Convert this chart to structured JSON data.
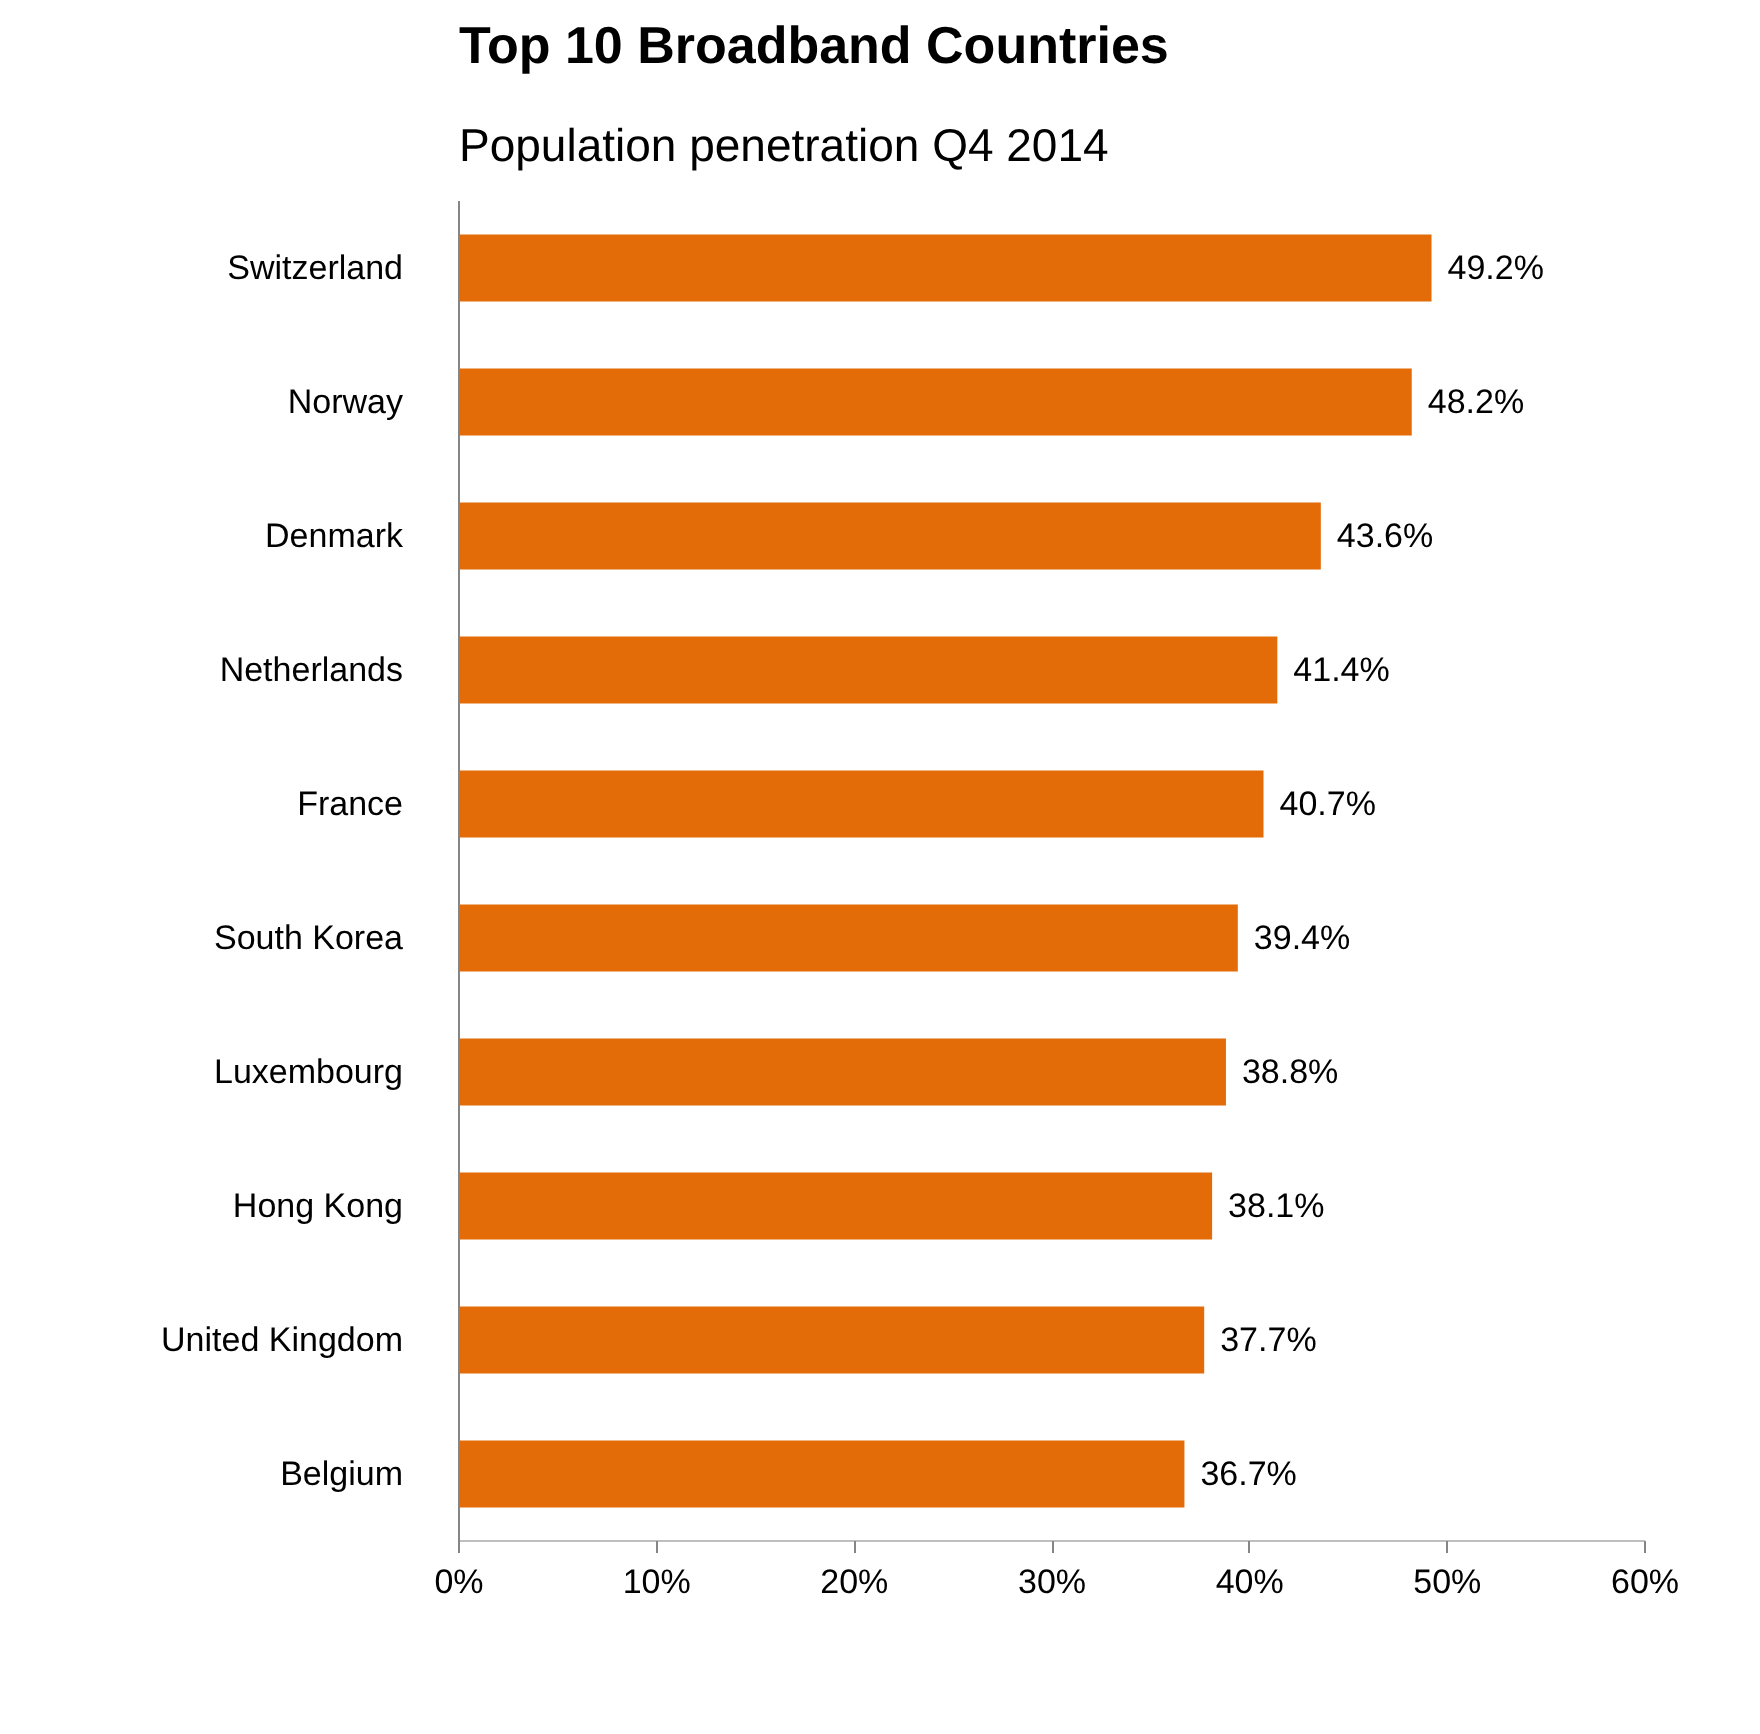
{
  "chart_data": {
    "type": "bar",
    "orientation": "horizontal",
    "title": "Top 10 Broadband Countries",
    "subtitle": "Population penetration Q4 2014",
    "categories": [
      "Switzerland",
      "Norway",
      "Denmark",
      "Netherlands",
      "France",
      "South Korea",
      "Luxembourg",
      "Hong Kong",
      "United Kingdom",
      "Belgium"
    ],
    "values": [
      49.2,
      48.2,
      43.6,
      41.4,
      40.7,
      39.4,
      38.8,
      38.1,
      37.7,
      36.7
    ],
    "value_labels": [
      "49.2%",
      "48.2%",
      "43.6%",
      "41.4%",
      "40.7%",
      "39.4%",
      "38.8%",
      "38.1%",
      "37.7%",
      "36.7%"
    ],
    "color": "#e36c09",
    "xlim": [
      0,
      60
    ],
    "xticks": [
      {
        "value": 0,
        "label": "0%"
      },
      {
        "value": 10,
        "label": "10%"
      },
      {
        "value": 20,
        "label": "20%"
      },
      {
        "value": 30,
        "label": "30%"
      },
      {
        "value": 40,
        "label": "40%"
      },
      {
        "value": 50,
        "label": "50%"
      },
      {
        "value": 60,
        "label": "60%"
      }
    ],
    "grid": false
  }
}
